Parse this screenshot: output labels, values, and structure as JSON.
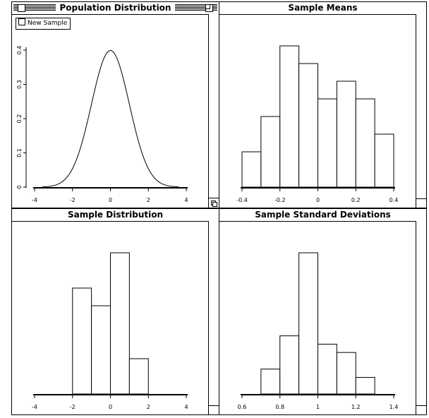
{
  "windows": {
    "population": {
      "title": "Population Distribution",
      "button": "New Sample"
    },
    "means": {
      "title": "Sample Means"
    },
    "dist": {
      "title": "Sample Distribution"
    },
    "sds": {
      "title": "Sample Standard Deviations"
    }
  },
  "chart_data": [
    {
      "type": "line",
      "title": "Population Distribution",
      "x_ticks": [
        "-4",
        "-2",
        "0",
        "2",
        "4"
      ],
      "y_ticks": [
        "0",
        "0.1",
        "0.2",
        "0.3",
        "0.4"
      ],
      "xlim": [
        -4,
        4
      ],
      "ylim": [
        0,
        0.4
      ],
      "curve": "standard normal density"
    },
    {
      "type": "bar",
      "title": "Sample Means",
      "x_ticks": [
        "-0.4",
        "-0.2",
        "0",
        "0.2",
        "0.4"
      ],
      "xlim": [
        -0.4,
        0.4
      ],
      "bin_edges": [
        -0.4,
        -0.3,
        -0.2,
        -0.1,
        0.0,
        0.1,
        0.2,
        0.3,
        0.4
      ],
      "values": [
        5,
        10,
        20,
        17.5,
        12.5,
        15,
        12.5,
        7.5
      ]
    },
    {
      "type": "bar",
      "title": "Sample Distribution",
      "x_ticks": [
        "-4",
        "-2",
        "0",
        "2",
        "4"
      ],
      "xlim": [
        -4,
        4
      ],
      "bin_edges": [
        -2,
        -1,
        0,
        1,
        2
      ],
      "values": [
        3,
        2.5,
        4,
        1
      ]
    },
    {
      "type": "bar",
      "title": "Sample Standard Deviations",
      "x_ticks": [
        "0.6",
        "0.8",
        "1",
        "1.2",
        "1.4"
      ],
      "xlim": [
        0.6,
        1.4
      ],
      "bin_edges": [
        0.7,
        0.8,
        0.9,
        1.0,
        1.1,
        1.2,
        1.3
      ],
      "values": [
        1.5,
        3.5,
        8.5,
        3.0,
        2.5,
        1.0
      ]
    }
  ]
}
